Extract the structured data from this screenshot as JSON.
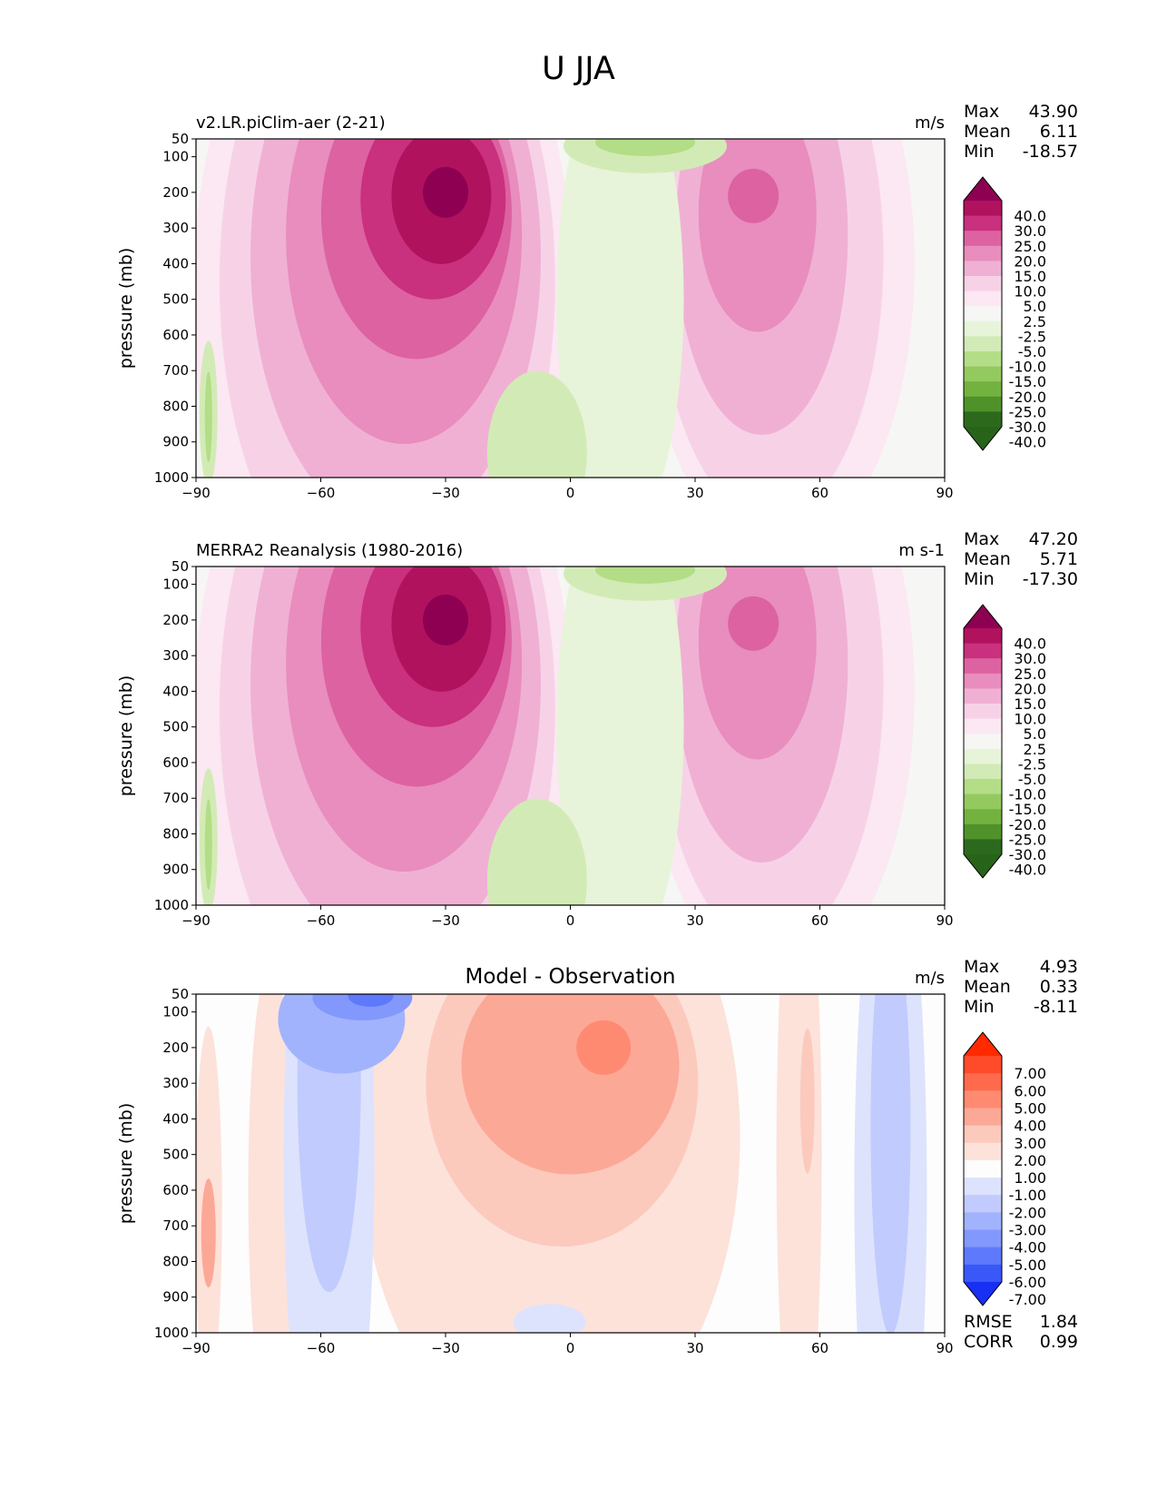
{
  "page": {
    "title": "U JJA"
  },
  "chart_data": [
    {
      "type": "heatmap",
      "title": "v2.LR.piClim-aer (2-21)",
      "units": "m/s",
      "xlabel": "",
      "ylabel": "pressure (mb)",
      "xlim": [
        -90,
        90
      ],
      "ylim": [
        1000,
        50
      ],
      "xticks": [
        "−90",
        "−60",
        "−30",
        "0",
        "30",
        "60",
        "90"
      ],
      "yticks": [
        "50",
        "100",
        "200",
        "300",
        "400",
        "500",
        "600",
        "700",
        "800",
        "900",
        "1000"
      ],
      "stats": [
        {
          "label": "Max",
          "value": "43.90"
        },
        {
          "label": "Mean",
          "value": "6.11"
        },
        {
          "label": "Min",
          "value": "-18.57"
        }
      ],
      "colorbar": {
        "labels": [
          "40.0",
          "30.0",
          "25.0",
          "20.0",
          "15.0",
          "10.0",
          "5.0",
          "2.5",
          "-2.5",
          "-5.0",
          "-10.0",
          "-15.0",
          "-20.0",
          "-25.0",
          "-30.0",
          "-40.0"
        ],
        "colors": [
          "#8e0152",
          "#b0125e",
          "#c9307e",
          "#dd62a2",
          "#e88dbd",
          "#f0b0d4",
          "#f7d2e7",
          "#fbe8f2",
          "#f6f6f4",
          "#e7f4d9",
          "#d2ebb6",
          "#b3dd86",
          "#94c95f",
          "#74b23f",
          "#4f922a",
          "#2d691d",
          "#276419"
        ]
      },
      "features": [
        {
          "kind": "jet",
          "lat": -30,
          "p": 200,
          "max": 43.9
        },
        {
          "kind": "jet",
          "lat": 45,
          "p": 200,
          "max": 25
        },
        {
          "kind": "easterly",
          "lat": 15,
          "p": 70,
          "min": -18.57
        },
        {
          "kind": "easterly",
          "lat": -10,
          "p": 900,
          "min": -8
        },
        {
          "kind": "easterly",
          "lat": -88,
          "p": 800,
          "min": -12
        }
      ]
    },
    {
      "type": "heatmap",
      "title": "MERRA2 Reanalysis (1980-2016)",
      "units": "m s-1",
      "xlabel": "",
      "ylabel": "pressure (mb)",
      "xlim": [
        -90,
        90
      ],
      "ylim": [
        1000,
        50
      ],
      "xticks": [
        "−90",
        "−60",
        "−30",
        "0",
        "30",
        "60",
        "90"
      ],
      "yticks": [
        "50",
        "100",
        "200",
        "300",
        "400",
        "500",
        "600",
        "700",
        "800",
        "900",
        "1000"
      ],
      "stats": [
        {
          "label": "Max",
          "value": "47.20"
        },
        {
          "label": "Mean",
          "value": "5.71"
        },
        {
          "label": "Min",
          "value": "-17.30"
        }
      ],
      "colorbar": {
        "labels": [
          "40.0",
          "30.0",
          "25.0",
          "20.0",
          "15.0",
          "10.0",
          "5.0",
          "2.5",
          "-2.5",
          "-5.0",
          "-10.0",
          "-15.0",
          "-20.0",
          "-25.0",
          "-30.0",
          "-40.0"
        ],
        "colors": [
          "#8e0152",
          "#b0125e",
          "#c9307e",
          "#dd62a2",
          "#e88dbd",
          "#f0b0d4",
          "#f7d2e7",
          "#fbe8f2",
          "#f6f6f4",
          "#e7f4d9",
          "#d2ebb6",
          "#b3dd86",
          "#94c95f",
          "#74b23f",
          "#4f922a",
          "#2d691d",
          "#276419"
        ]
      },
      "features": [
        {
          "kind": "jet",
          "lat": -30,
          "p": 200,
          "max": 47.2
        },
        {
          "kind": "jet",
          "lat": 45,
          "p": 200,
          "max": 25
        },
        {
          "kind": "easterly",
          "lat": 15,
          "p": 70,
          "min": -17.3
        },
        {
          "kind": "easterly",
          "lat": -10,
          "p": 900,
          "min": -7
        },
        {
          "kind": "easterly",
          "lat": -88,
          "p": 800,
          "min": -12
        }
      ]
    },
    {
      "type": "heatmap",
      "title": "Model - Observation",
      "units": "m/s",
      "xlabel": "",
      "ylabel": "pressure (mb)",
      "xlim": [
        -90,
        90
      ],
      "ylim": [
        1000,
        50
      ],
      "xticks": [
        "−90",
        "−60",
        "−30",
        "0",
        "30",
        "60",
        "90"
      ],
      "yticks": [
        "50",
        "100",
        "200",
        "300",
        "400",
        "500",
        "600",
        "700",
        "800",
        "900",
        "1000"
      ],
      "stats": [
        {
          "label": "Max",
          "value": "4.93"
        },
        {
          "label": "Mean",
          "value": "0.33"
        },
        {
          "label": "Min",
          "value": "-8.11"
        }
      ],
      "metrics": [
        {
          "label": "RMSE",
          "value": "1.84"
        },
        {
          "label": "CORR",
          "value": "0.99"
        }
      ],
      "colorbar": {
        "labels": [
          "7.00",
          "6.00",
          "5.00",
          "4.00",
          "3.00",
          "2.00",
          "1.00",
          "-1.00",
          "-2.00",
          "-3.00",
          "-4.00",
          "-5.00",
          "-6.00",
          "-7.00"
        ],
        "colors": [
          "#ff2a00",
          "#ff4b2a",
          "#ff6a4c",
          "#ff8a72",
          "#fca896",
          "#fccabd",
          "#fde2da",
          "#fdfdfd",
          "#dde3fd",
          "#c1cbfd",
          "#a2b3fd",
          "#8298fc",
          "#5e79fb",
          "#3a57f8",
          "#1730f3"
        ]
      },
      "features": [
        {
          "kind": "positive",
          "lat": 0,
          "p": 250,
          "max": 4.93
        },
        {
          "kind": "negative",
          "lat": -50,
          "p": 60,
          "min": -8.11
        },
        {
          "kind": "negative",
          "lat": -58,
          "p": 350,
          "min": -4
        },
        {
          "kind": "negative",
          "lat": 77,
          "p": 450,
          "min": -3
        },
        {
          "kind": "positive",
          "lat": -87,
          "p": 720,
          "max": 4
        }
      ]
    }
  ]
}
